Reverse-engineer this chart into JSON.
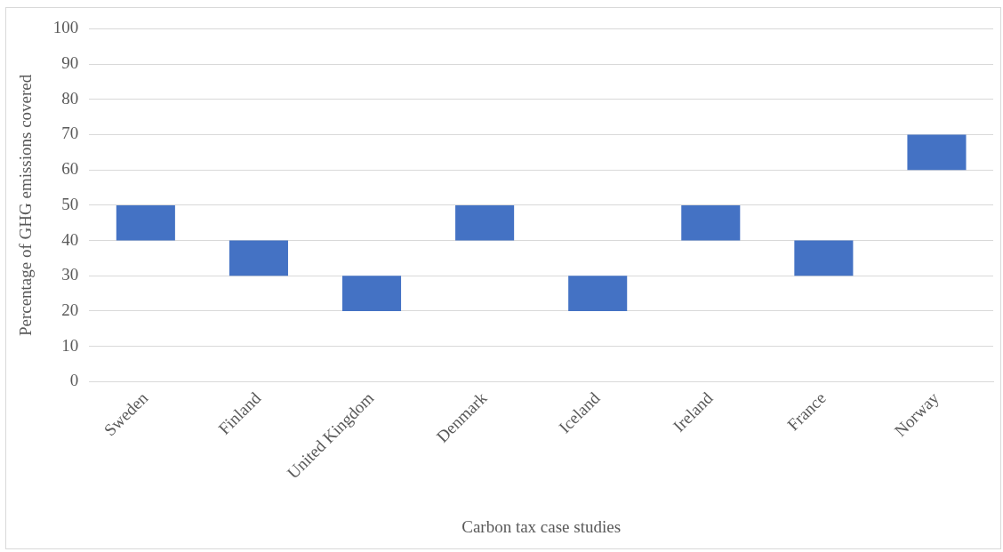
{
  "chart_data": {
    "type": "bar",
    "xlabel": "Carbon tax case studies",
    "ylabel": "Percentage of GHG emissions covered",
    "categories": [
      "Sweden",
      "Finland",
      "United Kingdom",
      "Denmark",
      "Iceland",
      "Ireland",
      "France",
      "Norway"
    ],
    "base": [
      40,
      30,
      20,
      40,
      20,
      40,
      30,
      60
    ],
    "values": [
      10,
      10,
      10,
      10,
      10,
      10,
      10,
      10
    ],
    "color": "#4472c4",
    "ylim": [
      0,
      100
    ],
    "yticks": [
      0,
      10,
      20,
      30,
      40,
      50,
      60,
      70,
      80,
      90,
      100
    ],
    "grid": "y",
    "legend": false
  }
}
